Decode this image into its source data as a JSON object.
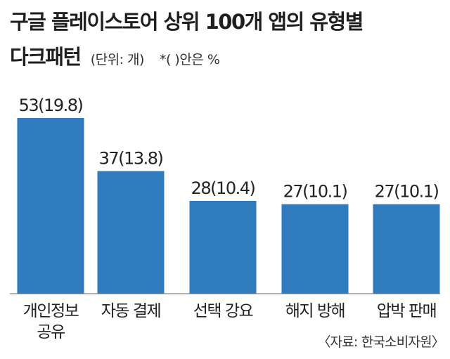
{
  "header": {
    "title": "구글 플레이스토어 상위 100개 앱의 유형별",
    "subtitle": "다크패턴",
    "unit_note": "(단위: 개)",
    "pct_note": "*( )안은 %"
  },
  "source": "〈자료: 한국소비자원〉",
  "colors": {
    "bar": "#2f7bbd",
    "baseline": "#666666",
    "text": "#222222"
  },
  "chart_data": {
    "type": "bar",
    "categories": [
      [
        "개인정보",
        "공유"
      ],
      [
        "자동 결제"
      ],
      [
        "선택 강요"
      ],
      [
        "해지 방해"
      ],
      [
        "압박 판매"
      ]
    ],
    "values": [
      53,
      37,
      28,
      27,
      27
    ],
    "value_labels": [
      "53(19.8)",
      "37(13.8)",
      "28(10.4)",
      "27(10.1)",
      "27(10.1)"
    ],
    "percentages": [
      19.8,
      13.8,
      10.4,
      10.1,
      10.1
    ],
    "title": "구글 플레이스토어 상위 100개 앱의 유형별 다크패턴",
    "xlabel": "",
    "ylabel": "",
    "ylim": [
      0,
      53
    ],
    "grid": false,
    "legend": "none"
  }
}
